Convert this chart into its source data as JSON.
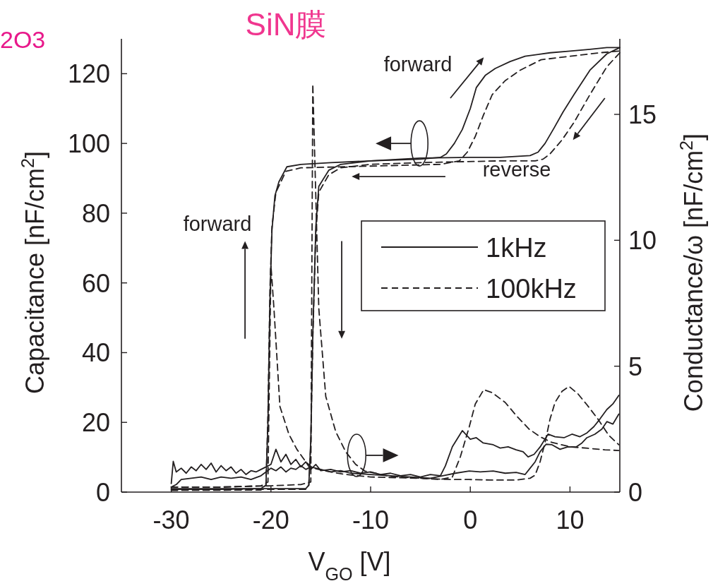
{
  "chart_data": {
    "type": "line",
    "title": "SiN膜",
    "xlabel": "V$_{GO}$ [V]",
    "ylabel": "Capacitance [nF/cm$^{2}$]",
    "y2label": "Conductance/ω [nF/cm$^{2}$]",
    "annotations": [
      "2O3",
      "forward",
      "forward",
      "reverse"
    ],
    "xlim": [
      -35,
      15
    ],
    "xticks": [
      -30,
      -20,
      -10,
      0,
      10
    ],
    "ylim": [
      0,
      130
    ],
    "yticks": [
      0,
      20,
      40,
      60,
      80,
      100,
      120
    ],
    "y2lim": [
      0,
      18
    ],
    "y2ticks": [
      0,
      5,
      10,
      15
    ],
    "legend": "right",
    "grid": false,
    "marker": "none",
    "series": [
      {
        "name": "1kHz",
        "color": "#231f20",
        "line_style": "solid",
        "x": [
          -30,
          -25,
          -21,
          -20.5,
          -20.3,
          -20.1,
          -19.9,
          -19.6,
          -19.2,
          -18.4,
          -17,
          -14,
          -10,
          -5,
          -3,
          -2.4,
          -1.6,
          -0.8,
          0,
          0.6,
          1.5,
          2.5,
          4,
          5.5,
          8,
          10,
          12,
          13.7,
          15
        ],
        "values": [
          0.8,
          0.8,
          1,
          2,
          20,
          55,
          75,
          85,
          89,
          93.3,
          94,
          94.5,
          95,
          95.5,
          96,
          97,
          100,
          104,
          110,
          116,
          119.5,
          121.5,
          123.5,
          125,
          126,
          126.5,
          127,
          127.5,
          127.5
        ]
      },
      {
        "name": "100kHz",
        "color": "#231f20",
        "line_style": "dashed",
        "x": [
          -30,
          -21,
          -20.5,
          -20.3,
          -20.1,
          -19.9,
          -19.5,
          -18.5,
          -17,
          -10,
          -3,
          -1.1,
          -0.3,
          0.5,
          1.3,
          2.2,
          3.5,
          5,
          7.1,
          10,
          13,
          15
        ],
        "values": [
          0.5,
          0.6,
          2,
          22,
          58,
          76,
          86,
          92,
          93,
          93.5,
          94,
          95,
          97.5,
          102,
          108,
          114,
          118,
          121,
          124,
          125,
          126,
          126.5
        ]
      },
      {
        "color": "#231f20",
        "line_style": "solid",
        "x": [
          15,
          13.7,
          12,
          10.4,
          9.3,
          8.4,
          7.5,
          6.8,
          6,
          3,
          0,
          -5,
          -10,
          -13,
          -14.2,
          -15.2,
          -15.5,
          -15.8,
          -16.0,
          -16.2,
          -16.5,
          -20,
          -25,
          -30
        ],
        "values": [
          127.5,
          125.7,
          121,
          114,
          109,
          104.4,
          100,
          97.5,
          96.5,
          96,
          96,
          95.8,
          95,
          94,
          92.3,
          87.7,
          76,
          45,
          15,
          2,
          1,
          1,
          1,
          1
        ]
      },
      {
        "color": "#231f20",
        "line_style": "dashed",
        "x": [
          15,
          13.7,
          12,
          10.4,
          9.2,
          8.0,
          7.3,
          6.5,
          3,
          -5,
          -10,
          -13,
          -14.2,
          -15.2,
          -15.5,
          -15.8,
          -16.0,
          -16.2,
          -16.5,
          -30
        ],
        "values": [
          126,
          122,
          114,
          106,
          101,
          97,
          95.5,
          95,
          95,
          94.5,
          94,
          93,
          91,
          86,
          74,
          44,
          14,
          2,
          0.8,
          0.8
        ]
      },
      {
        "color": "#231f20",
        "line_style": "solid",
        "axis": "y2",
        "x": [
          -30,
          -29.8,
          -29.5,
          -29,
          -28.5,
          -28,
          -27.5,
          -27,
          -26.5,
          -26,
          -25.5,
          -25,
          -24.5,
          -24,
          -23.5,
          -23,
          -22.5,
          -22,
          -21.5,
          -21,
          -20.5,
          -20,
          -19.5,
          -19,
          -18.5,
          -18,
          -17.5,
          -17,
          -16.5,
          -16,
          -15.5,
          -15,
          -14,
          -13,
          -12,
          -11,
          -10,
          -9,
          -8,
          -7,
          -6,
          -5,
          -4,
          -3,
          -2.5,
          -1.8,
          -0.8,
          0,
          0.6,
          1.3,
          2.3,
          3,
          3.8,
          4.6,
          5.3,
          5.8,
          6.4,
          7.0,
          7.8,
          8.5,
          9.4,
          10.2,
          11,
          11.7,
          12.4,
          13,
          13.7,
          14.3,
          14.9
        ],
        "values": [
          0.34,
          1.22,
          0.8,
          0.95,
          0.75,
          1.0,
          0.85,
          1.1,
          0.9,
          1.15,
          0.8,
          1.05,
          0.85,
          1.0,
          0.75,
          0.9,
          0.7,
          0.85,
          0.8,
          0.9,
          1.0,
          1.1,
          1.7,
          1.2,
          1.5,
          1.1,
          1.3,
          1.0,
          1.2,
          0.9,
          1.1,
          0.85,
          0.9,
          0.8,
          0.85,
          0.75,
          0.8,
          0.7,
          0.75,
          0.65,
          0.7,
          0.6,
          0.7,
          0.65,
          1.04,
          1.8,
          2.44,
          2.1,
          2.16,
          1.95,
          1.88,
          1.75,
          1.8,
          1.68,
          1.6,
          1.4,
          1.5,
          1.79,
          2.3,
          2.2,
          2.16,
          2.3,
          2.2,
          2.35,
          2.6,
          2.9,
          3.28,
          3.5,
          3.84
        ]
      },
      {
        "color": "#231f20",
        "line_style": "solid",
        "axis": "y2",
        "x": [
          -30,
          -29.5,
          -29,
          -28,
          -27,
          -26,
          -25,
          -24,
          -23,
          -22,
          -21,
          -20.5,
          -20,
          -19.5,
          -19,
          -18.5,
          -18,
          -17.5,
          -17,
          -16.5,
          -16,
          -15,
          -14,
          -13,
          -12,
          -10,
          -8,
          -6,
          -4,
          -2.5,
          -1.5,
          -0.1,
          1,
          2.3,
          3.5,
          4.6,
          5.5,
          6.0,
          6.5,
          7.0,
          7.6,
          8.2,
          9,
          9.8,
          10.6,
          11.2,
          11.7,
          12.5,
          13.2,
          13.7,
          14.3,
          14.9
        ],
        "values": [
          0.2,
          0.3,
          0.5,
          0.55,
          0.6,
          0.5,
          0.6,
          0.55,
          0.6,
          0.5,
          0.65,
          0.8,
          0.95,
          0.85,
          1.0,
          0.8,
          0.95,
          0.9,
          1.05,
          0.9,
          1.0,
          0.9,
          0.8,
          0.85,
          0.75,
          0.7,
          0.65,
          0.6,
          0.55,
          0.67,
          0.75,
          0.84,
          0.8,
          0.84,
          0.75,
          0.78,
          0.7,
          0.95,
          1.2,
          1.6,
          1.9,
          1.88,
          1.7,
          1.8,
          1.79,
          1.95,
          2.16,
          2.3,
          2.5,
          2.8,
          2.7,
          3.1
        ]
      },
      {
        "color": "#231f20",
        "line_style": "dashed",
        "axis": "y2",
        "x": [
          -30,
          -25,
          -21,
          -20.3,
          -20.0,
          -19.7,
          -19.1,
          -18.2,
          -17.4,
          -16.5,
          -15.8,
          -14,
          -12.5,
          -10,
          -5,
          -3,
          -1.8,
          -1.0,
          -0.1,
          0.5,
          1.35,
          2.2,
          3.5,
          4.7,
          5.9,
          7,
          8.2,
          10,
          11.8,
          13.5,
          14.9
        ],
        "values": [
          0.2,
          0.2,
          0.25,
          0.4,
          9,
          7.3,
          3.4,
          2.3,
          1.7,
          1.2,
          0.95,
          0.8,
          0.7,
          0.6,
          0.55,
          0.5,
          0.6,
          1.4,
          2.6,
          3.5,
          4.07,
          3.95,
          3.56,
          3.0,
          2.5,
          2.2,
          1.97,
          1.8,
          1.74,
          1.68,
          1.65
        ]
      },
      {
        "color": "#231f20",
        "line_style": "dashed",
        "axis": "y2",
        "x": [
          -30,
          -25,
          -20,
          -17,
          -16.0,
          -15.8,
          -15.2,
          -14.5,
          -13.5,
          -12.5,
          -11.5,
          -10.6,
          -8,
          -5,
          -2,
          -0.1,
          2,
          4.6,
          6.0,
          6.5,
          7.0,
          7.5,
          8.0,
          8.5,
          9.2,
          9.9,
          10.8,
          11.7,
          12.8,
          13.9,
          14.9
        ],
        "values": [
          0.2,
          0.2,
          0.25,
          0.3,
          0.4,
          16.2,
          7.3,
          3.8,
          2.4,
          1.6,
          1.1,
          0.84,
          0.62,
          0.55,
          0.5,
          0.5,
          0.48,
          0.48,
          0.55,
          0.67,
          1.2,
          1.97,
          2.9,
          3.56,
          4.0,
          4.2,
          3.9,
          3.47,
          2.9,
          2.25,
          1.88
        ]
      }
    ]
  }
}
